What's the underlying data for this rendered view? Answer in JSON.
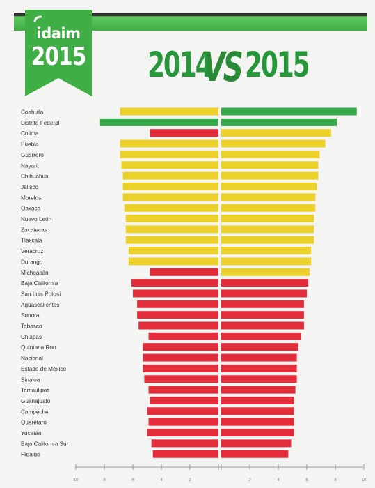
{
  "header": {
    "logo_brand": "idaim",
    "logo_year": "2015",
    "title_left": "2014",
    "title_vs": "VS",
    "title_right": "2015"
  },
  "colors": {
    "green": "#36a94a",
    "yellow": "#ecd12a",
    "red": "#e32d3b",
    "header_green": "#3fae45"
  },
  "chart_data": {
    "type": "bar",
    "layout": "back-to-back horizontal bars",
    "series": [
      {
        "name": "2014",
        "side": "left"
      },
      {
        "name": "2015",
        "side": "right"
      }
    ],
    "categories": [
      "Coahuila",
      "Distrito Federal",
      "Colima",
      "Puebla",
      "Guerrero",
      "Nayarit",
      "Chihuahua",
      "Jalisco",
      "Morelos",
      "Oaxaca",
      "Nuevo León",
      "Zacatecas",
      "Tlaxcala",
      "Veracruz",
      "Durango",
      "Michoacán",
      "Baja California",
      "San Luis Potosí",
      "Aguascalientes",
      "Sonora",
      "Tabasco",
      "Chiapas",
      "Quintana Roo",
      "Nacional",
      "Estado de México",
      "Sinaloa",
      "Tamaulipas",
      "Guanajuato",
      "Campeche",
      "Querétaro",
      "Yucatán",
      "Baja California Sur",
      "Hidalgo"
    ],
    "values_2014": [
      6.9,
      8.3,
      4.8,
      6.9,
      6.9,
      6.8,
      6.7,
      6.7,
      6.7,
      6.6,
      6.5,
      6.5,
      6.5,
      6.3,
      6.3,
      4.8,
      6.1,
      6.0,
      5.7,
      5.7,
      5.6,
      4.9,
      5.3,
      5.3,
      5.3,
      5.2,
      4.9,
      4.8,
      5.0,
      4.9,
      5.0,
      4.7,
      4.6
    ],
    "colors_2014": [
      "yellow",
      "green",
      "red",
      "yellow",
      "yellow",
      "yellow",
      "yellow",
      "yellow",
      "yellow",
      "yellow",
      "yellow",
      "yellow",
      "yellow",
      "yellow",
      "yellow",
      "red",
      "red",
      "red",
      "red",
      "red",
      "red",
      "red",
      "red",
      "red",
      "red",
      "red",
      "red",
      "red",
      "red",
      "red",
      "red",
      "red",
      "red"
    ],
    "values_2015": [
      9.5,
      8.1,
      7.7,
      7.3,
      6.9,
      6.8,
      6.8,
      6.7,
      6.6,
      6.6,
      6.5,
      6.5,
      6.5,
      6.3,
      6.3,
      6.2,
      6.1,
      6.0,
      5.8,
      5.8,
      5.8,
      5.6,
      5.4,
      5.3,
      5.3,
      5.3,
      5.2,
      5.1,
      5.1,
      5.1,
      5.1,
      4.9,
      4.7
    ],
    "colors_2015": [
      "green",
      "green",
      "yellow",
      "yellow",
      "yellow",
      "yellow",
      "yellow",
      "yellow",
      "yellow",
      "yellow",
      "yellow",
      "yellow",
      "yellow",
      "yellow",
      "yellow",
      "yellow",
      "red",
      "red",
      "red",
      "red",
      "red",
      "red",
      "red",
      "red",
      "red",
      "red",
      "red",
      "red",
      "red",
      "red",
      "red",
      "red",
      "red"
    ],
    "xlim": [
      0,
      10
    ],
    "left_ticks": [
      "10",
      "8",
      "6",
      "4",
      "2"
    ],
    "right_ticks": [
      "2",
      "4",
      "6",
      "8",
      "10"
    ],
    "grid": false,
    "legend": "none"
  }
}
